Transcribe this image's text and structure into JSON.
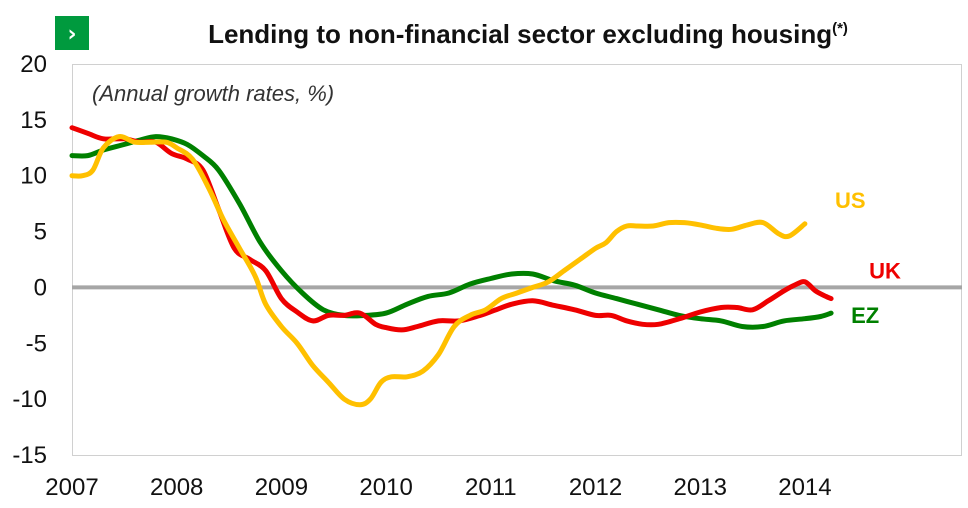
{
  "chart_data": {
    "type": "line",
    "title": "Lending to non-financial sector excluding housing",
    "title_suffix": "(*)",
    "subtitle": "(Annual growth rates, %)",
    "title_badge_icon": "chevron-right-icon",
    "xlabel": "",
    "ylabel": "",
    "xlim": [
      2007.0,
      2015.5
    ],
    "ylim": [
      -15,
      20
    ],
    "x_ticks": [
      2007,
      2008,
      2009,
      2010,
      2011,
      2012,
      2013,
      2014
    ],
    "x_tick_labels": [
      "2007",
      "2008",
      "2009",
      "2010",
      "2011",
      "2012",
      "2013",
      "2014"
    ],
    "y_ticks": [
      20,
      15,
      10,
      5,
      0,
      -5,
      -10,
      -15
    ],
    "y_tick_labels": [
      "20",
      "15",
      "10",
      "5",
      "0",
      "-5",
      "-10",
      "-15"
    ],
    "grid": false,
    "zero_line_color": "#a6a6a6",
    "legend": "inline labels at line ends",
    "badge_color": "#009a3e",
    "series": [
      {
        "name": "US",
        "color": "#ffc000",
        "x": [
          2007.0,
          2007.1,
          2007.2,
          2007.3,
          2007.45,
          2007.6,
          2007.75,
          2007.9,
          2008.0,
          2008.15,
          2008.3,
          2008.45,
          2008.6,
          2008.75,
          2008.85,
          2009.0,
          2009.15,
          2009.3,
          2009.45,
          2009.6,
          2009.75,
          2009.85,
          2009.95,
          2010.05,
          2010.2,
          2010.35,
          2010.5,
          2010.65,
          2010.8,
          2010.95,
          2011.1,
          2011.25,
          2011.4,
          2011.55,
          2011.7,
          2011.85,
          2012.0,
          2012.1,
          2012.2,
          2012.3,
          2012.4,
          2012.55,
          2012.7,
          2012.85,
          2013.0,
          2013.15,
          2013.3,
          2013.45,
          2013.6,
          2013.75,
          2013.85,
          2014.0
        ],
        "values": [
          10,
          10,
          10.5,
          12.5,
          13.5,
          13,
          13,
          13,
          12.5,
          11.5,
          9,
          6,
          3.5,
          1,
          -1.5,
          -3.5,
          -5,
          -7,
          -8.5,
          -10,
          -10.5,
          -10,
          -8.5,
          -8,
          -8,
          -7.5,
          -6,
          -3.5,
          -2.5,
          -2,
          -1,
          -0.5,
          0,
          0.5,
          1.5,
          2.5,
          3.5,
          4,
          5,
          5.5,
          5.5,
          5.5,
          5.8,
          5.8,
          5.6,
          5.3,
          5.2,
          5.6,
          5.8,
          4.8,
          4.6,
          5.7
        ]
      },
      {
        "name": "UK",
        "color": "#ee0000",
        "x": [
          2007.0,
          2007.15,
          2007.3,
          2007.5,
          2007.65,
          2007.8,
          2007.95,
          2008.1,
          2008.25,
          2008.4,
          2008.55,
          2008.7,
          2008.85,
          2009.0,
          2009.15,
          2009.3,
          2009.45,
          2009.6,
          2009.75,
          2009.9,
          2010.0,
          2010.15,
          2010.3,
          2010.5,
          2010.7,
          2010.9,
          2011.05,
          2011.2,
          2011.4,
          2011.6,
          2011.8,
          2012.0,
          2012.15,
          2012.3,
          2012.45,
          2012.6,
          2012.8,
          2013.0,
          2013.2,
          2013.35,
          2013.5,
          2013.65,
          2013.8,
          2013.9,
          2014.0,
          2014.1,
          2014.2,
          2014.25
        ],
        "values": [
          14.3,
          13.8,
          13.3,
          13.3,
          13,
          13,
          12,
          11.5,
          10.5,
          7,
          3.5,
          2.5,
          1.5,
          -1,
          -2.2,
          -3,
          -2.5,
          -2.5,
          -2.3,
          -3.3,
          -3.6,
          -3.8,
          -3.5,
          -3,
          -3,
          -2.5,
          -2,
          -1.5,
          -1.2,
          -1.6,
          -2,
          -2.5,
          -2.5,
          -3,
          -3.3,
          -3.3,
          -2.8,
          -2.2,
          -1.8,
          -1.8,
          -2,
          -1.2,
          -0.3,
          0.2,
          0.5,
          -0.3,
          -0.8,
          -1.0
        ]
      },
      {
        "name": "EZ",
        "color": "#008000",
        "x": [
          2007.0,
          2007.15,
          2007.3,
          2007.5,
          2007.65,
          2007.8,
          2007.95,
          2008.1,
          2008.25,
          2008.4,
          2008.6,
          2008.8,
          2009.0,
          2009.2,
          2009.4,
          2009.6,
          2009.8,
          2010.0,
          2010.2,
          2010.4,
          2010.6,
          2010.8,
          2011.0,
          2011.2,
          2011.4,
          2011.6,
          2011.8,
          2012.0,
          2012.2,
          2012.4,
          2012.6,
          2012.8,
          2013.0,
          2013.2,
          2013.4,
          2013.6,
          2013.8,
          2014.0,
          2014.15,
          2014.25
        ],
        "values": [
          11.8,
          11.8,
          12.3,
          12.8,
          13.2,
          13.5,
          13.3,
          12.8,
          11.8,
          10.5,
          7.5,
          4,
          1.5,
          -0.5,
          -2,
          -2.5,
          -2.5,
          -2.3,
          -1.5,
          -0.8,
          -0.5,
          0.3,
          0.8,
          1.2,
          1.2,
          0.6,
          0.2,
          -0.5,
          -1,
          -1.5,
          -2,
          -2.5,
          -2.8,
          -3,
          -3.5,
          -3.5,
          -3,
          -2.8,
          -2.6,
          -2.3
        ]
      }
    ]
  }
}
